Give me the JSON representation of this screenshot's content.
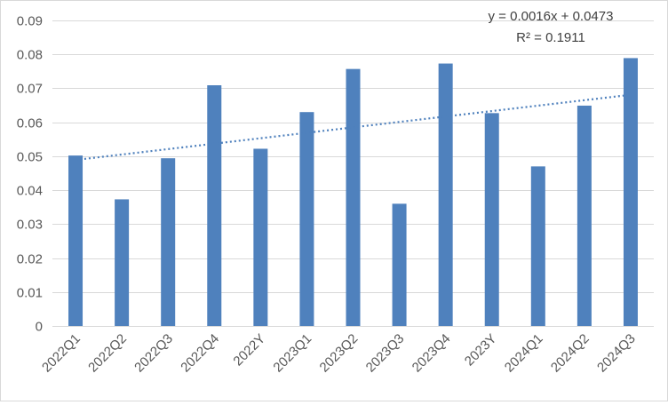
{
  "chart_data": {
    "type": "bar",
    "title": "",
    "xlabel": "",
    "ylabel": "",
    "categories": [
      "2022Q1",
      "2022Q2",
      "2022Q3",
      "2022Q4",
      "2022Y",
      "2023Q1",
      "2023Q2",
      "2023Q3",
      "2023Q4",
      "2023Y",
      "2024Q1",
      "2024Q2",
      "2024Q3"
    ],
    "values": [
      0.0502,
      0.0373,
      0.0494,
      0.0709,
      0.0522,
      0.063,
      0.0757,
      0.036,
      0.0773,
      0.0627,
      0.047,
      0.0649,
      0.0789
    ],
    "ylim": [
      0,
      0.09
    ],
    "yticks": [
      "0",
      "0.01",
      "0.02",
      "0.03",
      "0.04",
      "0.05",
      "0.06",
      "0.07",
      "0.08",
      "0.09"
    ],
    "grid": true,
    "legend": "none",
    "colors": {
      "bar": "#4f81bd",
      "trendline": "#4f81bd",
      "grid": "#d9d9d9",
      "text": "#595959",
      "equation_text": "#404040"
    },
    "trendline": {
      "type": "linear",
      "style": "dotted",
      "slope": 0.0016,
      "intercept": 0.0473,
      "equation": "y = 0.0016x + 0.0473",
      "r_squared": "R² = 0.1911"
    }
  }
}
